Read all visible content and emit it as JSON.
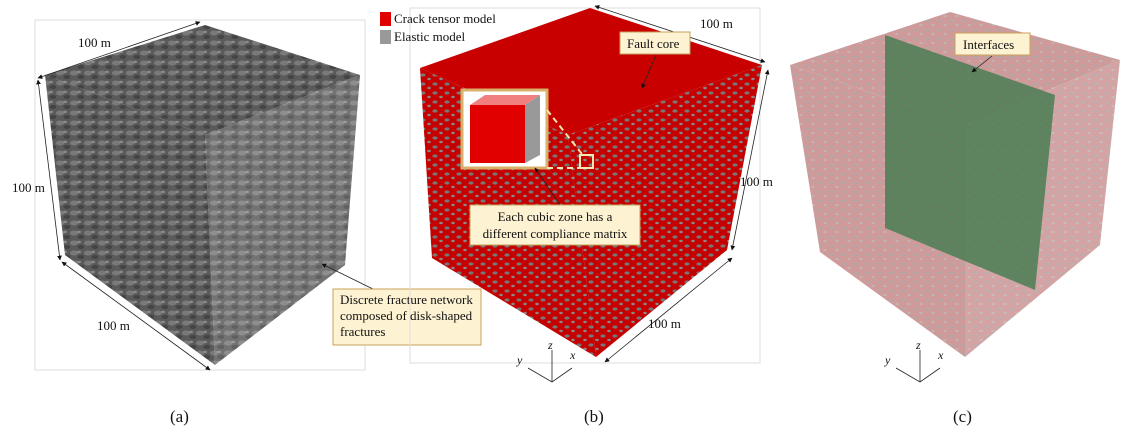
{
  "panels": [
    {
      "label": "(a)",
      "dimensions": [
        "100 m",
        "100 m",
        "100 m"
      ],
      "callout": [
        "Discrete fracture network",
        "composed of disk-shaped",
        "fractures"
      ]
    },
    {
      "label": "(b)",
      "dimensions": [
        "100 m",
        "100 m",
        "100 m"
      ],
      "legend": [
        "Crack tensor model",
        "Elastic model"
      ],
      "annotation": "Fault core",
      "callout": [
        "Each cubic zone has a",
        "different compliance matrix"
      ],
      "axes": [
        "z",
        "y",
        "x"
      ]
    },
    {
      "label": "(c)",
      "annotation": "Interfaces",
      "axes": [
        "z",
        "y",
        "x"
      ]
    }
  ]
}
